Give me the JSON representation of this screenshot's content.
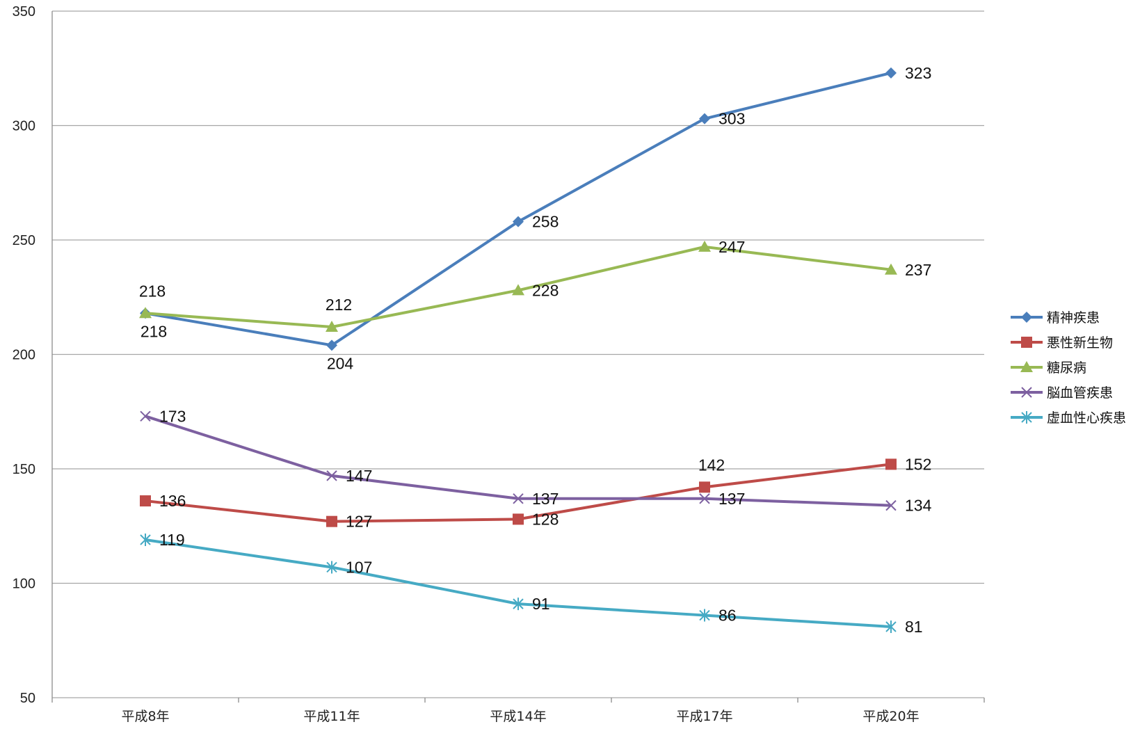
{
  "chart_data": {
    "type": "line",
    "categories": [
      "平成8年",
      "平成11年",
      "平成14年",
      "平成17年",
      "平成20年"
    ],
    "ylim": [
      50,
      350
    ],
    "yticks": [
      50,
      100,
      150,
      200,
      250,
      300,
      350
    ],
    "grid": true,
    "legend_position": "right",
    "series": [
      {
        "name": "精神疾患",
        "values": [
          218,
          204,
          258,
          303,
          323
        ],
        "color": "#4a7ebb",
        "marker": "diamond",
        "label_pos": [
          "above",
          "below",
          "right",
          "right",
          "right"
        ]
      },
      {
        "name": "悪性新生物",
        "values": [
          136,
          127,
          128,
          142,
          152
        ],
        "color": "#be4b48",
        "marker": "square",
        "label_pos": [
          "right",
          "right",
          "right",
          "above",
          "right"
        ]
      },
      {
        "name": "糖尿病",
        "values": [
          218,
          212,
          228,
          247,
          237
        ],
        "color": "#98b954",
        "marker": "triangle",
        "label_pos": [
          "below",
          "above",
          "right",
          "right",
          "right"
        ]
      },
      {
        "name": "脳血管疾患",
        "values": [
          173,
          147,
          137,
          137,
          134
        ],
        "color": "#7d60a0",
        "marker": "x",
        "label_pos": [
          "right",
          "right",
          "right",
          "right",
          "right"
        ]
      },
      {
        "name": "虚血性心疾患",
        "values": [
          119,
          107,
          91,
          86,
          81
        ],
        "color": "#46aac4",
        "marker": "star",
        "label_pos": [
          "right",
          "right",
          "right",
          "right",
          "right"
        ]
      }
    ]
  }
}
